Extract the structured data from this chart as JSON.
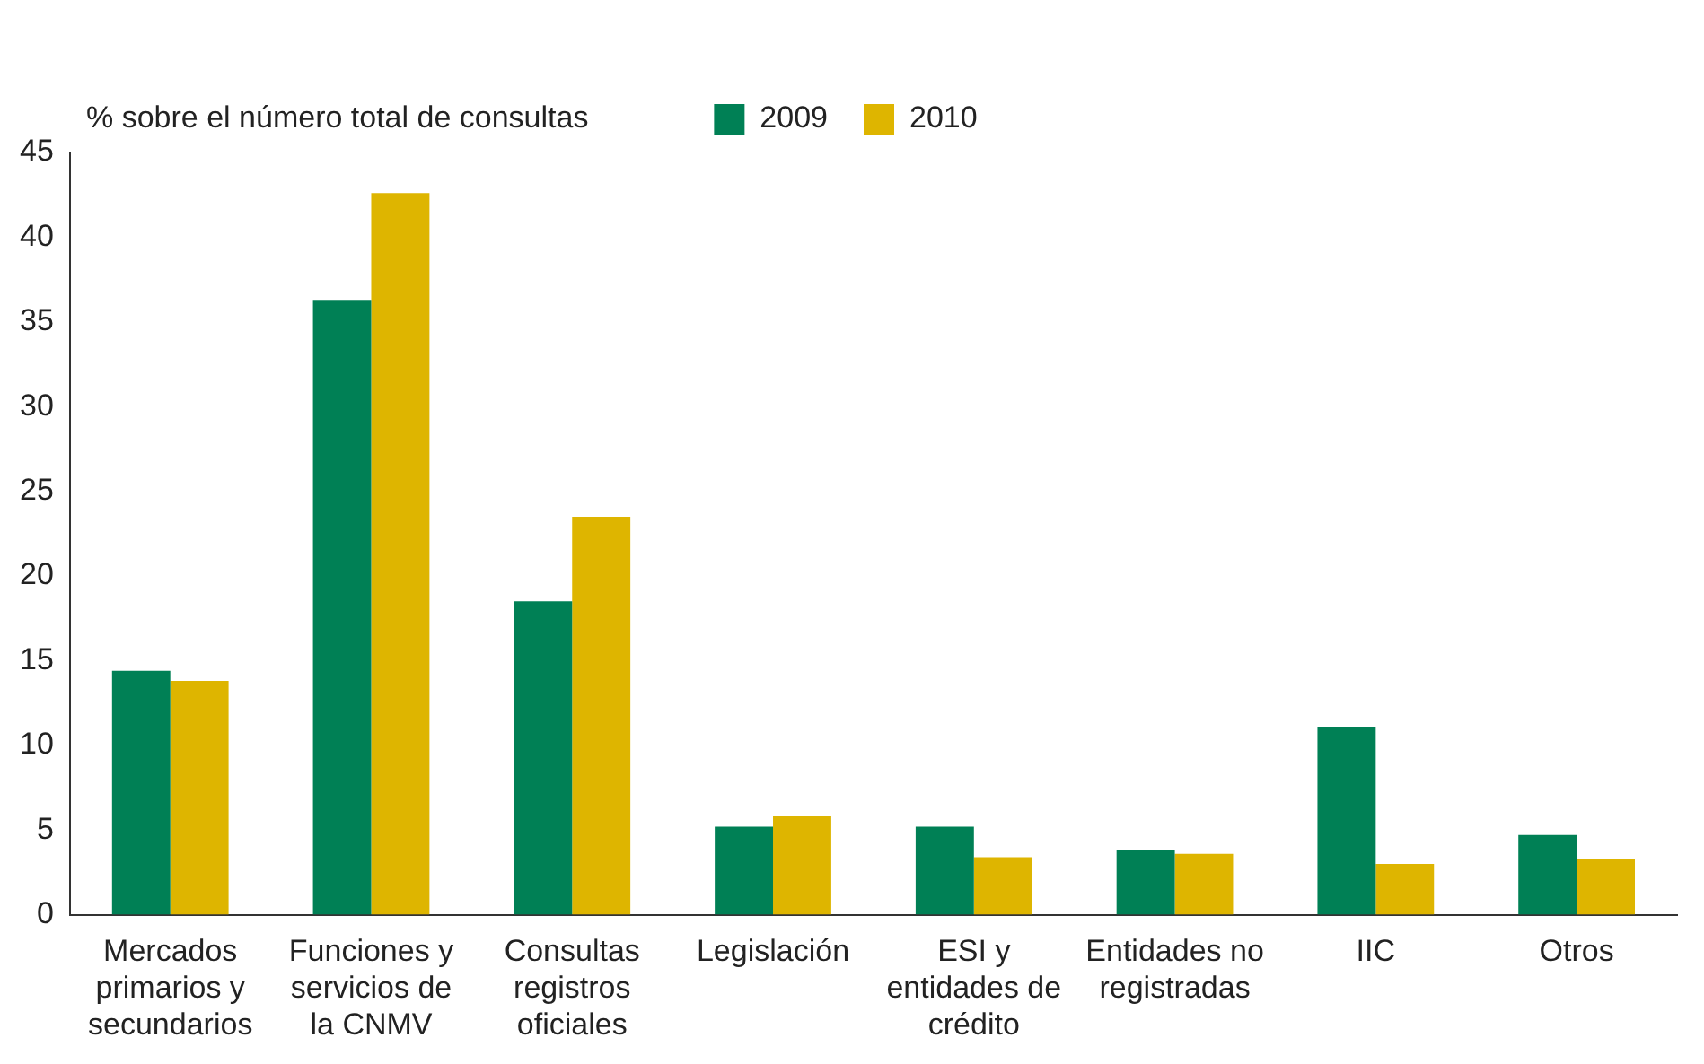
{
  "chart_data": {
    "type": "bar",
    "ylabel": "% sobre el número total de consultas",
    "categories": [
      "Mercados primarios y secundarios",
      "Funciones y servicios de la CNMV",
      "Consultas registros oficiales",
      "Legislación",
      "ESI y entidades de crédito",
      "Entidades no registradas",
      "IIC",
      "Otros"
    ],
    "series": [
      {
        "name": "2009",
        "color": "#008055",
        "values": [
          14.4,
          36.3,
          18.5,
          5.2,
          5.2,
          3.8,
          11.1,
          4.7
        ]
      },
      {
        "name": "2010",
        "color": "#deb500",
        "values": [
          13.8,
          42.6,
          23.5,
          5.8,
          3.4,
          3.6,
          3.0,
          3.3
        ]
      }
    ],
    "ylim": [
      0,
      45
    ],
    "yticks": [
      0,
      5,
      10,
      15,
      20,
      25,
      30,
      35,
      40,
      45
    ],
    "grid": false,
    "legend": "top"
  }
}
